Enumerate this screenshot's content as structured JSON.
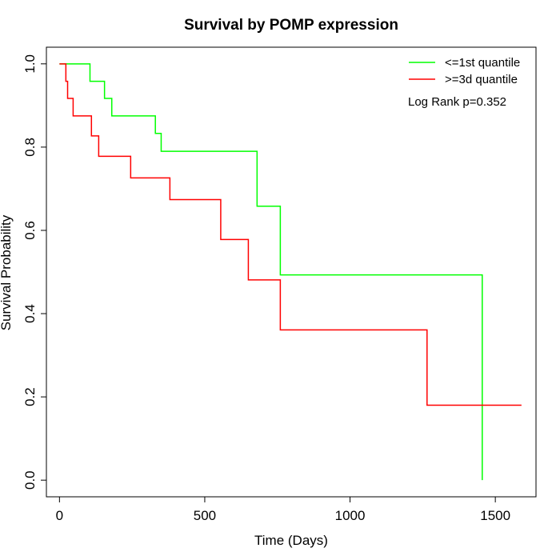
{
  "chart_data": {
    "type": "line",
    "title": "Survival by POMP expression",
    "xlabel": "Time (Days)",
    "ylabel": "Survival Probability",
    "xlim": [
      -45,
      1640
    ],
    "ylim": [
      -0.04,
      1.04
    ],
    "xticks": [
      0,
      500,
      1000,
      1500
    ],
    "yticks": [
      0.0,
      0.2,
      0.4,
      0.6,
      0.8,
      1.0
    ],
    "xtick_labels": [
      "0",
      "500",
      "1000",
      "1500"
    ],
    "ytick_labels": [
      "0.0",
      "0.2",
      "0.4",
      "0.6",
      "0.8",
      "1.0"
    ],
    "step": true,
    "grid": false,
    "legend_position": "top-right",
    "annotation": "Log Rank p=0.352",
    "series": [
      {
        "name": "<=1st quantile",
        "color": "#00ff00",
        "x": [
          0,
          105,
          155,
          180,
          330,
          350,
          680,
          760,
          1455,
          1455
        ],
        "y": [
          1.0,
          0.958,
          0.917,
          0.875,
          0.833,
          0.79,
          0.658,
          0.493,
          0.0,
          0.0
        ]
      },
      {
        "name": ">=3d quantile",
        "color": "#ff0000",
        "x": [
          0,
          22,
          28,
          47,
          110,
          135,
          245,
          380,
          555,
          650,
          760,
          1265,
          1590
        ],
        "y": [
          1.0,
          0.958,
          0.917,
          0.875,
          0.827,
          0.778,
          0.726,
          0.674,
          0.578,
          0.481,
          0.361,
          0.18,
          0.18
        ]
      }
    ]
  }
}
